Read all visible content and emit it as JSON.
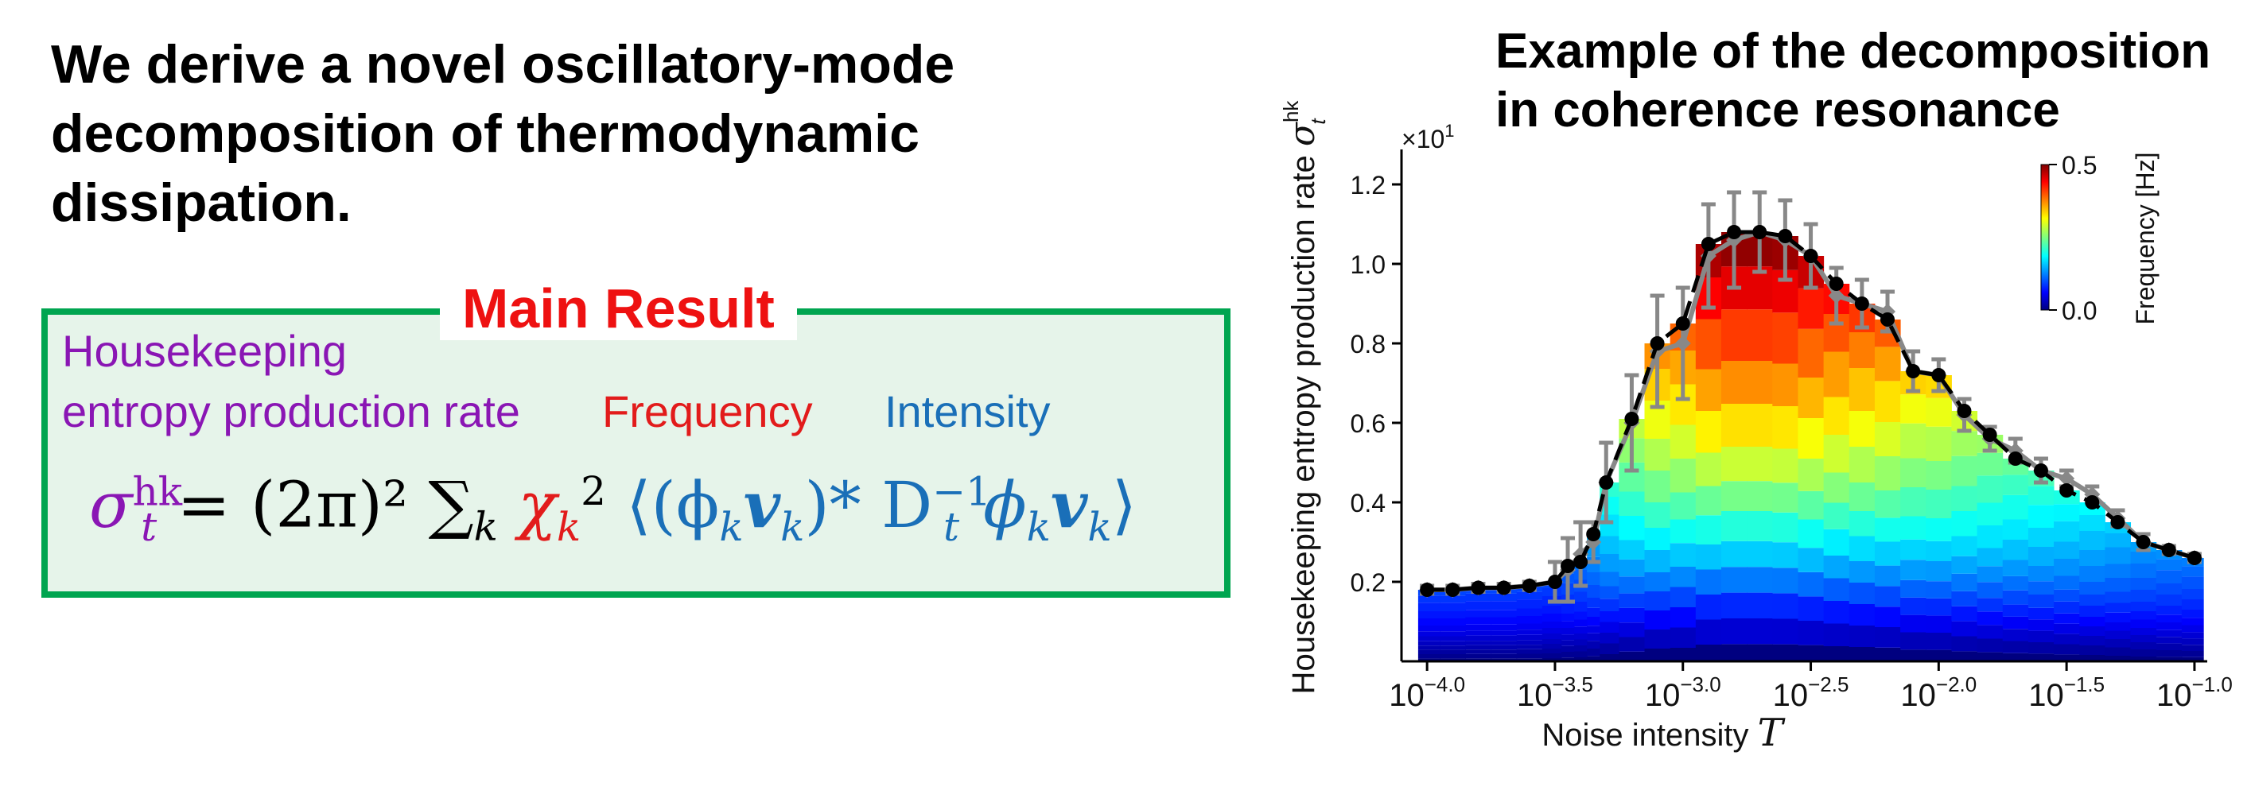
{
  "left_panel": {
    "headline": "We derive a novel oscillatory-mode decomposition of thermodynamic dissipation.",
    "box_title": "Main Result",
    "label_housekeeping_1": "Housekeeping",
    "label_housekeeping_2": "entropy production rate",
    "label_frequency": "Frequency",
    "label_intensity": "Intensity",
    "equation_lhs": "σ",
    "equation_lhs_sup": "hk",
    "equation_lhs_sub": "t",
    "equation_prefix": "= (2π)² ∑",
    "equation_sum_index": "k",
    "equation_chi": "χ",
    "equation_chi_sub": "k",
    "equation_chi_sup": "2",
    "equation_rest": "⟨(ϕ",
    "equation_rest_sub": "k",
    "equation_v": "v",
    "equation_v_sub": "k",
    "equation_mid": ")* D",
    "equation_mid_sup": "−1",
    "equation_mid_sub": "t",
    "equation_end": "ϕ",
    "equation_end_sub": "k",
    "equation_v2": "v",
    "equation_v2_sub": "k",
    "equation_close": "⟩"
  },
  "colors": {
    "headline_text": "#000000",
    "box_border": "#00a550",
    "box_fill": "#e6f4ea",
    "title_red": "#ee1111",
    "purple": "#8a16b4",
    "red": "#e21b1b",
    "blue": "#1a6fb8",
    "errorbar": "#888888",
    "mean_line": "#000000"
  },
  "chart_data": {
    "type": "bar",
    "title": "Example of the decomposition in coherence resonance",
    "xlabel": "Noise intensity",
    "xlabel_symbol": "T",
    "ylabel": "Housekeeping entropy production rate",
    "ylabel_symbol": "σ",
    "ylabel_symbol_sup": "hk",
    "ylabel_symbol_sub": "t",
    "y_multiplier_label": "×10",
    "y_multiplier_exp": "1",
    "x_scale": "log10",
    "xlim": [
      -4.1,
      -0.95
    ],
    "ylim": [
      0.0,
      1.28
    ],
    "x_ticks": [
      -4.0,
      -3.5,
      -3.0,
      -2.5,
      -2.0,
      -1.5,
      -1.0
    ],
    "x_tick_labels": [
      "−4.0",
      "−3.5",
      "−3.0",
      "−2.5",
      "−2.0",
      "−1.5",
      "−1.0"
    ],
    "x_tick_base": "10",
    "y_ticks": [
      0.2,
      0.4,
      0.6,
      0.8,
      1.0,
      1.2
    ],
    "y_tick_labels": [
      "0.2",
      "0.4",
      "0.6",
      "0.8",
      "1.0",
      "1.2"
    ],
    "colorbar": {
      "label": "Frequency [Hz]",
      "min": 0.0,
      "max": 0.5,
      "min_label": "0.0",
      "max_label": "0.5",
      "colormap": "jet"
    },
    "log10_noise": [
      -4.0,
      -3.9,
      -3.8,
      -3.7,
      -3.6,
      -3.5,
      -3.45,
      -3.4,
      -3.35,
      -3.3,
      -3.2,
      -3.1,
      -3.0,
      -2.9,
      -2.8,
      -2.7,
      -2.6,
      -2.5,
      -2.4,
      -2.3,
      -2.2,
      -2.1,
      -2.0,
      -1.9,
      -1.8,
      -1.7,
      -1.6,
      -1.5,
      -1.4,
      -1.3,
      -1.2,
      -1.1,
      -1.0
    ],
    "series": [
      {
        "name": "",
        "values": [
          0.18,
          0.18,
          0.185,
          0.185,
          0.19,
          0.2,
          0.23,
          0.27,
          0.3,
          0.45,
          0.6,
          0.78,
          0.8,
          1.02,
          1.06,
          1.08,
          1.06,
          1.02,
          0.92,
          0.9,
          0.88,
          0.73,
          0.72,
          0.62,
          0.56,
          0.53,
          0.48,
          0.46,
          0.42,
          0.36,
          0.3,
          0.28,
          0.26
        ]
      },
      {
        "name": "",
        "values": [
          0.18,
          0.18,
          0.185,
          0.185,
          0.19,
          0.2,
          0.24,
          0.25,
          0.32,
          0.45,
          0.61,
          0.8,
          0.85,
          1.05,
          1.08,
          1.08,
          1.07,
          1.02,
          0.95,
          0.9,
          0.86,
          0.73,
          0.72,
          0.63,
          0.57,
          0.51,
          0.48,
          0.43,
          0.4,
          0.35,
          0.3,
          0.28,
          0.26
        ]
      }
    ],
    "errors": [
      0.01,
      0.01,
      0.01,
      0.01,
      0.01,
      0.05,
      0.08,
      0.08,
      0.05,
      0.1,
      0.12,
      0.14,
      0.14,
      0.13,
      0.12,
      0.1,
      0.1,
      0.08,
      0.07,
      0.06,
      0.05,
      0.05,
      0.04,
      0.04,
      0.03,
      0.03,
      0.03,
      0.02,
      0.02,
      0.02,
      0.02,
      0.01,
      0.01
    ],
    "grid": false,
    "legend": "none"
  }
}
